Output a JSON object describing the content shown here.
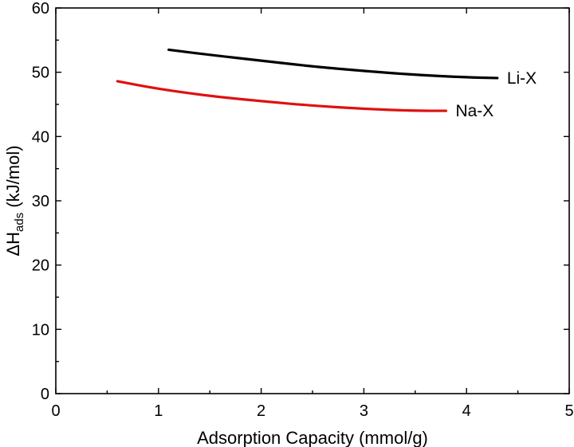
{
  "chart_data": {
    "type": "line",
    "title": "",
    "xlabel": "Adsorption Capacity (mmol/g)",
    "ylabel": {
      "prefix": "ΔH",
      "subscript": "ads",
      "suffix": " (kJ/mol)"
    },
    "xlim": [
      0,
      5
    ],
    "ylim": [
      0,
      60
    ],
    "xticks": [
      0,
      1,
      2,
      3,
      4,
      5
    ],
    "yticks": [
      0,
      10,
      20,
      30,
      40,
      50,
      60
    ],
    "grid": false,
    "legend": "inline labels at line ends",
    "series": [
      {
        "name": "Li-X",
        "color": "#000000",
        "x": [
          1.1,
          1.5,
          2.0,
          2.5,
          3.0,
          3.5,
          4.0,
          4.3
        ],
        "y": [
          53.5,
          52.7,
          51.8,
          50.9,
          50.2,
          49.6,
          49.2,
          49.1
        ]
      },
      {
        "name": "Na-X",
        "color": "#e01010",
        "x": [
          0.6,
          1.0,
          1.5,
          2.0,
          2.5,
          3.0,
          3.5,
          3.8
        ],
        "y": [
          48.6,
          47.4,
          46.3,
          45.5,
          44.8,
          44.3,
          44.0,
          44.0
        ]
      }
    ]
  }
}
